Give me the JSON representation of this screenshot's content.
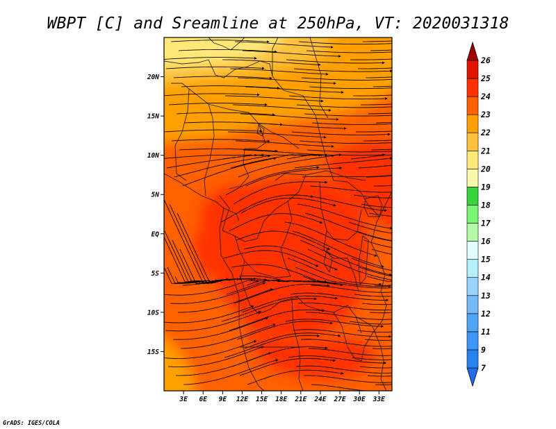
{
  "chart_data": {
    "type": "heatmap",
    "title": "WBPT [C] and Sreamline at 250hPa, VT: 2020031318",
    "variable": "Wet-bulb potential temperature (WBPT) [C] with streamlines",
    "level": "250hPa",
    "valid_time": "2020031318",
    "x_axis": {
      "range": [
        0,
        35
      ],
      "tick_values": [
        3,
        6,
        9,
        12,
        15,
        18,
        21,
        24,
        27,
        30,
        33
      ],
      "tick_labels": [
        "3E",
        "6E",
        "9E",
        "12E",
        "15E",
        "18E",
        "21E",
        "24E",
        "27E",
        "30E",
        "33E"
      ]
    },
    "y_axis": {
      "range": [
        -20,
        25
      ],
      "tick_values": [
        20,
        15,
        10,
        5,
        0,
        -5,
        -10,
        -15
      ],
      "tick_labels": [
        "20N",
        "15N",
        "10N",
        "5N",
        "EQ",
        "5S",
        "10S",
        "15S"
      ]
    },
    "colorbar": {
      "levels": [
        7,
        9,
        11,
        12,
        13,
        14,
        15,
        16,
        17,
        18,
        19,
        20,
        21,
        22,
        23,
        24,
        25,
        26
      ],
      "labels": [
        "7",
        "9",
        "11",
        "12",
        "13",
        "14",
        "15",
        "16",
        "17",
        "18",
        "19",
        "20",
        "21",
        "22",
        "23",
        "24",
        "25",
        "26"
      ],
      "colors": [
        "#1e6eeb",
        "#2882f0",
        "#3c96f5",
        "#50a5f5",
        "#78b9fa",
        "#96d2fa",
        "#b4f0fa",
        "#e1ffff",
        "#b4faaa",
        "#78f573",
        "#37d23c",
        "#fffaaa",
        "#ffe878",
        "#ffc03c",
        "#ffa000",
        "#ff6000",
        "#ff3200",
        "#e11400",
        "#c00000",
        "#a50000"
      ],
      "extend": "both"
    },
    "field_summary": {
      "value_range_shown": [
        19,
        25
      ],
      "regions": [
        {
          "area": "far north (20N-25N, 0-20E)",
          "approx_value": 20
        },
        {
          "area": "north Sahel band (12N-20N)",
          "approx_value": 22.5
        },
        {
          "area": "most of domain (20S-10N)",
          "approx_value": 23.5
        },
        {
          "area": "warm core over Congo basin and East Africa",
          "approx_value": 24.5
        },
        {
          "area": "southwest corner (15S-20S, 0-3E)",
          "approx_value": 22.5
        }
      ]
    },
    "streamline_flow": "predominantly westerly (eastward) flow at higher latitudes; cyclonic curvature along the west of the domain near the equator",
    "credit": "GrADS: IGES/COLA"
  }
}
